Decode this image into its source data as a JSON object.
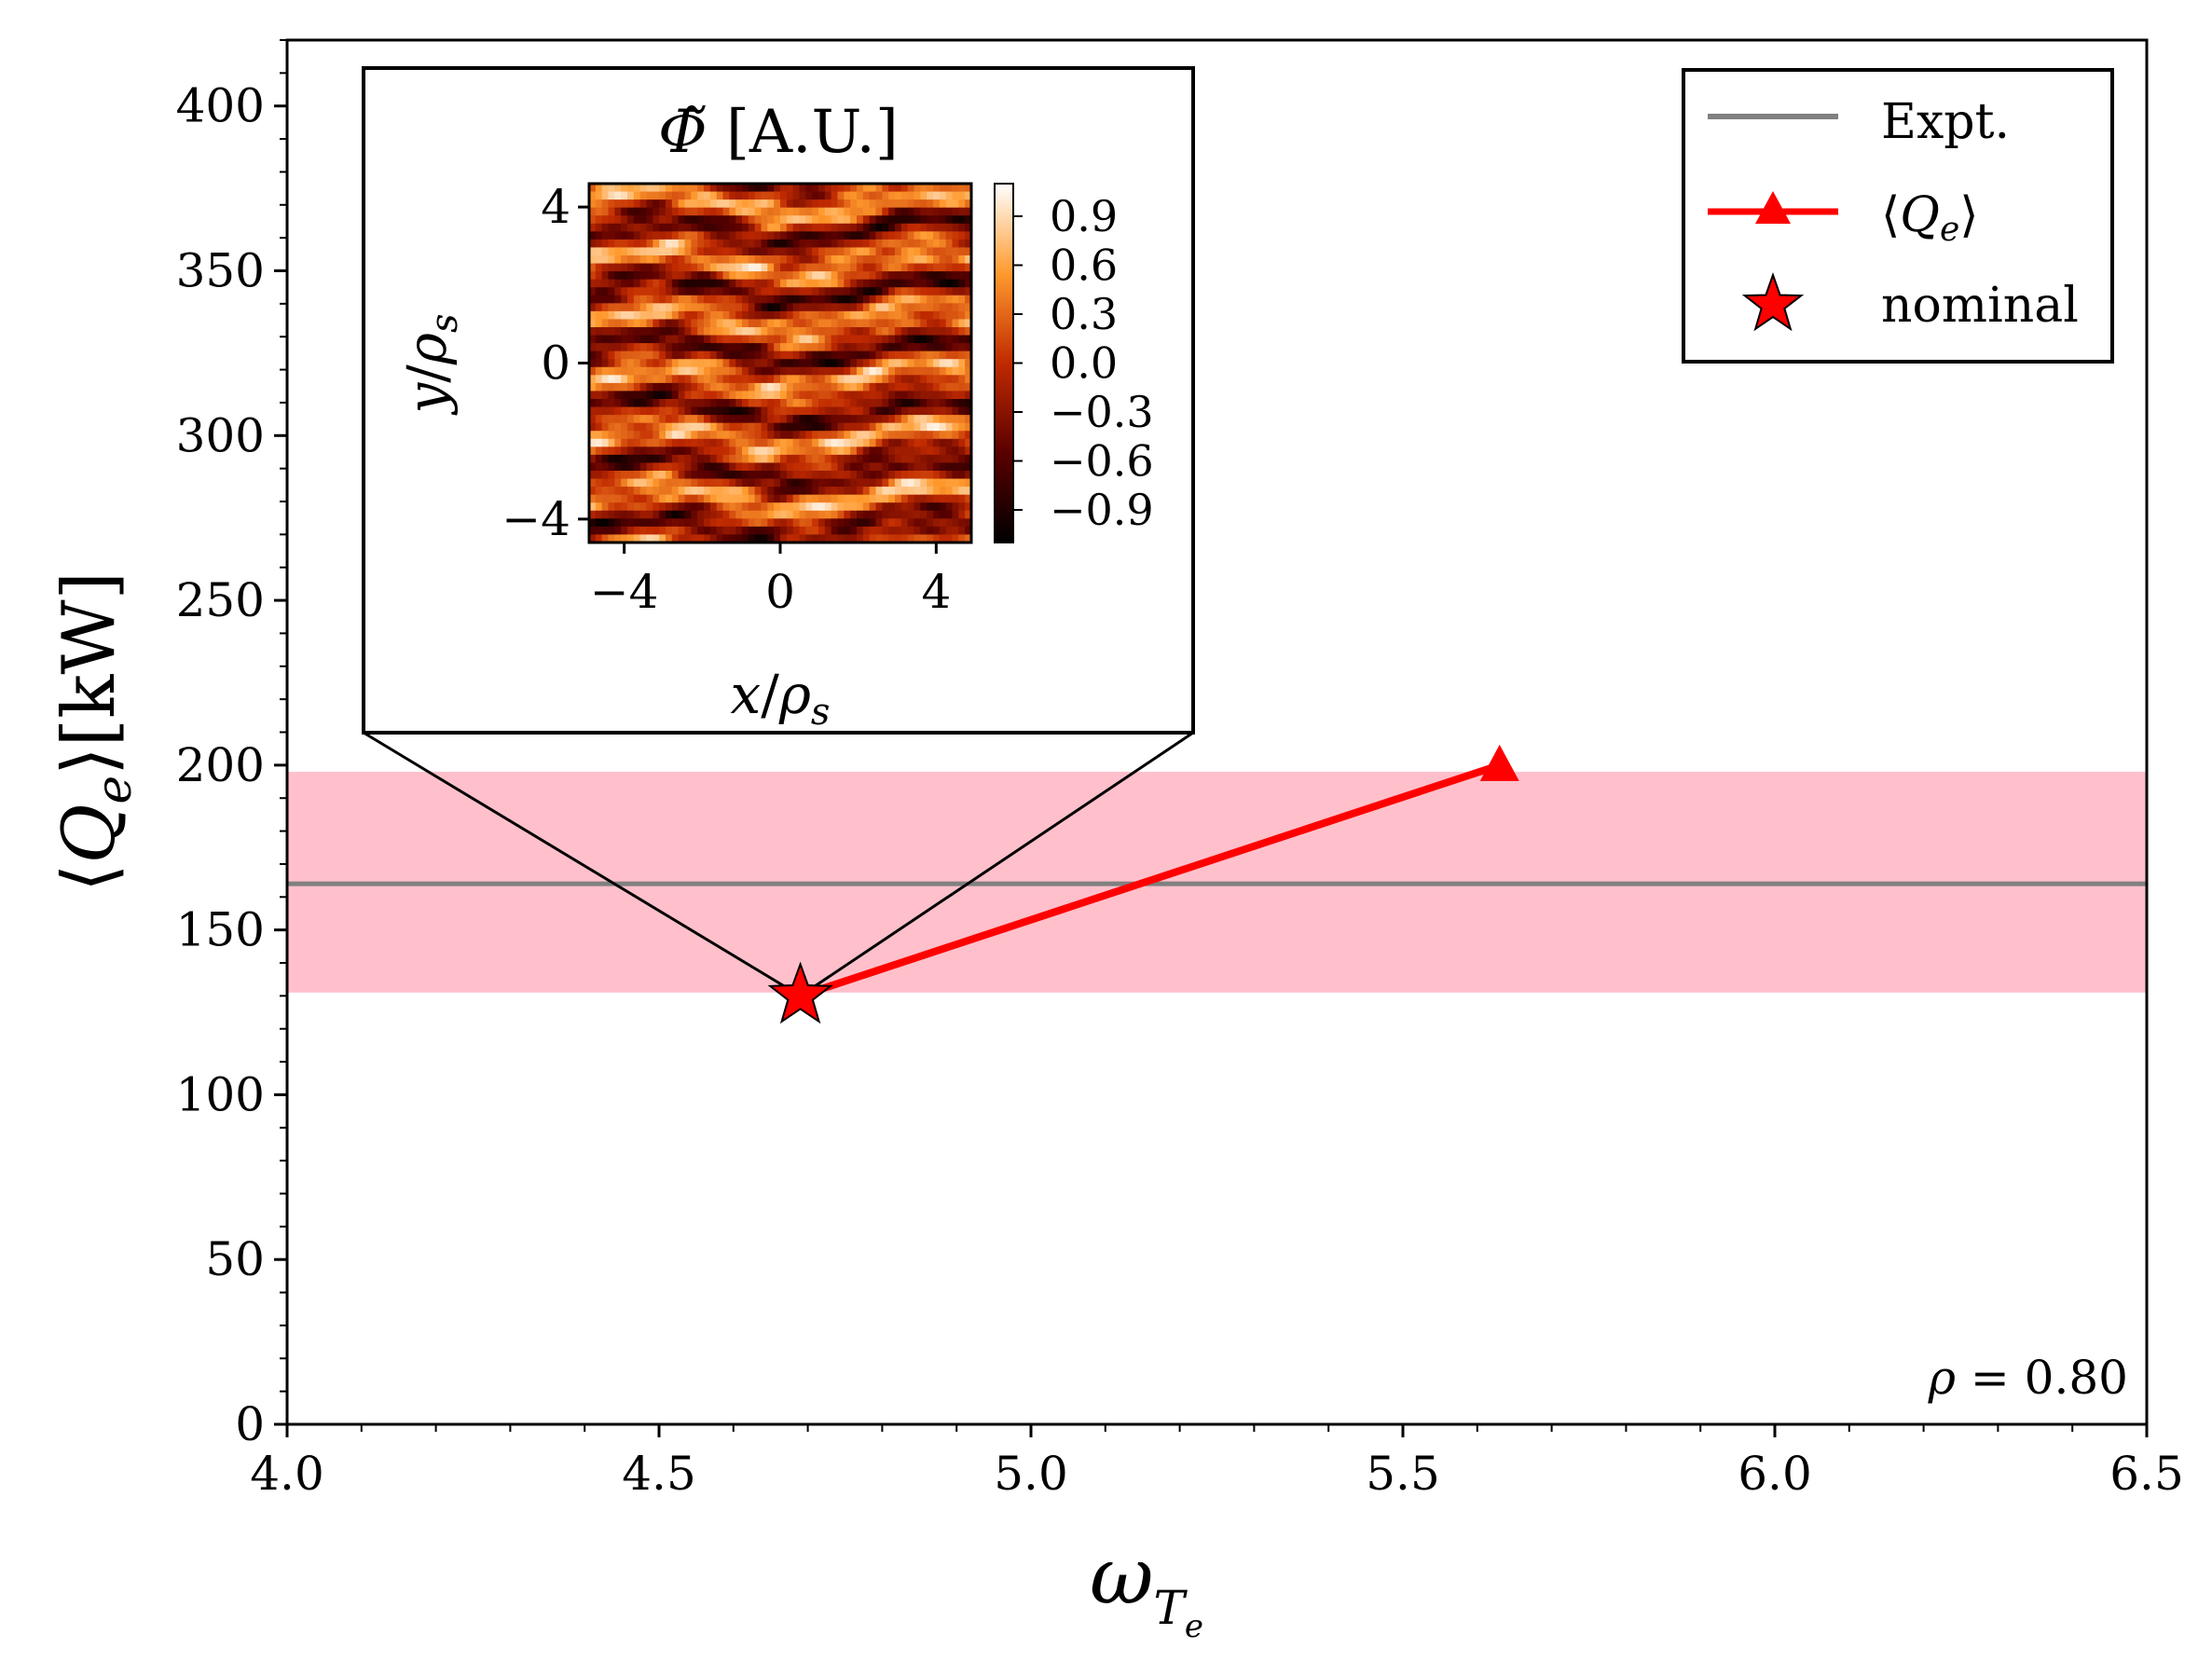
{
  "chart_data": {
    "type": "line",
    "xlabel": "ω",
    "xlabel_sub": "T",
    "xlabel_subsub": "e",
    "ylabel_prefix": "⟨",
    "ylabel_var": "Q",
    "ylabel_sub": "e",
    "ylabel_suffix": "⟩[kW]",
    "xlim": [
      4.0,
      6.5
    ],
    "ylim": [
      0,
      420
    ],
    "xticks": [
      4.0,
      4.5,
      5.0,
      5.5,
      6.0,
      6.5
    ],
    "xtick_labels": [
      "4.0",
      "4.5",
      "5.0",
      "5.5",
      "6.0",
      "6.5"
    ],
    "yticks": [
      0,
      50,
      100,
      150,
      200,
      250,
      300,
      350,
      400
    ],
    "ytick_labels": [
      "0",
      "50",
      "100",
      "150",
      "200",
      "250",
      "300",
      "350",
      "400"
    ],
    "expt": {
      "label": "Expt.",
      "value": 164,
      "band": [
        131,
        198
      ],
      "color": "#808080",
      "band_color": "#ffc0cb"
    },
    "series": [
      {
        "name": "⟨Q_e⟩",
        "legend_prefix": "⟨",
        "legend_var": "Q",
        "legend_sub": "e",
        "legend_suffix": "⟩",
        "x": [
          4.69,
          5.63
        ],
        "y": [
          130,
          200
        ],
        "color": "#ff0000",
        "marker": "triangle"
      }
    ],
    "nominal": {
      "label": "nominal",
      "x": 4.69,
      "y": 130,
      "color": "#ff0000",
      "marker": "star"
    },
    "annotation": {
      "symbol": "ρ",
      "text": " = 0.80"
    },
    "inset": {
      "title_symbol": "Φ̃",
      "title_text": " [A.U.]",
      "xlabel_var": "x",
      "xlabel_rho": "ρ",
      "xlabel_sub": "s",
      "ylabel_var": "y",
      "ylabel_rho": "ρ",
      "ylabel_sub": "s",
      "xlim": [
        -4.9,
        4.9
      ],
      "ylim": [
        -4.6,
        4.6
      ],
      "xticks": [
        -4,
        0,
        4
      ],
      "xtick_labels": [
        "−4",
        "0",
        "4"
      ],
      "yticks": [
        -4,
        0,
        4
      ],
      "ytick_labels": [
        "−4",
        "0",
        "4"
      ],
      "colorbar_ticks": [
        0.9,
        0.6,
        0.3,
        0.0,
        -0.3,
        -0.6,
        -0.9
      ],
      "colorbar_labels": [
        "0.9",
        "0.6",
        "0.3",
        "0.0",
        "−0.3",
        "−0.6",
        "−0.9"
      ],
      "colorbar_range": [
        -1.1,
        1.1
      ]
    }
  }
}
